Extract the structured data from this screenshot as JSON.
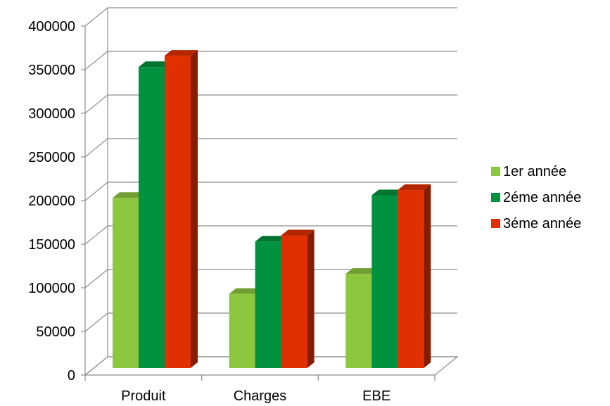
{
  "chart_data": {
    "type": "bar",
    "categories": [
      "Produit",
      "Charges",
      "EBE"
    ],
    "series": [
      {
        "name": "1er année",
        "values": [
          195000,
          85000,
          108000
        ],
        "color": "#8dc63f"
      },
      {
        "name": "2éme année",
        "values": [
          345000,
          145000,
          198000
        ],
        "color": "#00923f"
      },
      {
        "name": "3éme année",
        "values": [
          358000,
          152000,
          204000
        ],
        "color": "#e03000"
      }
    ],
    "ylim": [
      0,
      400000
    ],
    "yticks": [
      "0",
      "50000",
      "100000",
      "150000",
      "200000",
      "250000",
      "300000",
      "350000",
      "400000"
    ],
    "ytick_values": [
      0,
      50000,
      100000,
      150000,
      200000,
      250000,
      300000,
      350000,
      400000
    ],
    "grid": true,
    "legend_position": "right",
    "title": "",
    "xlabel": "",
    "ylabel": ""
  }
}
